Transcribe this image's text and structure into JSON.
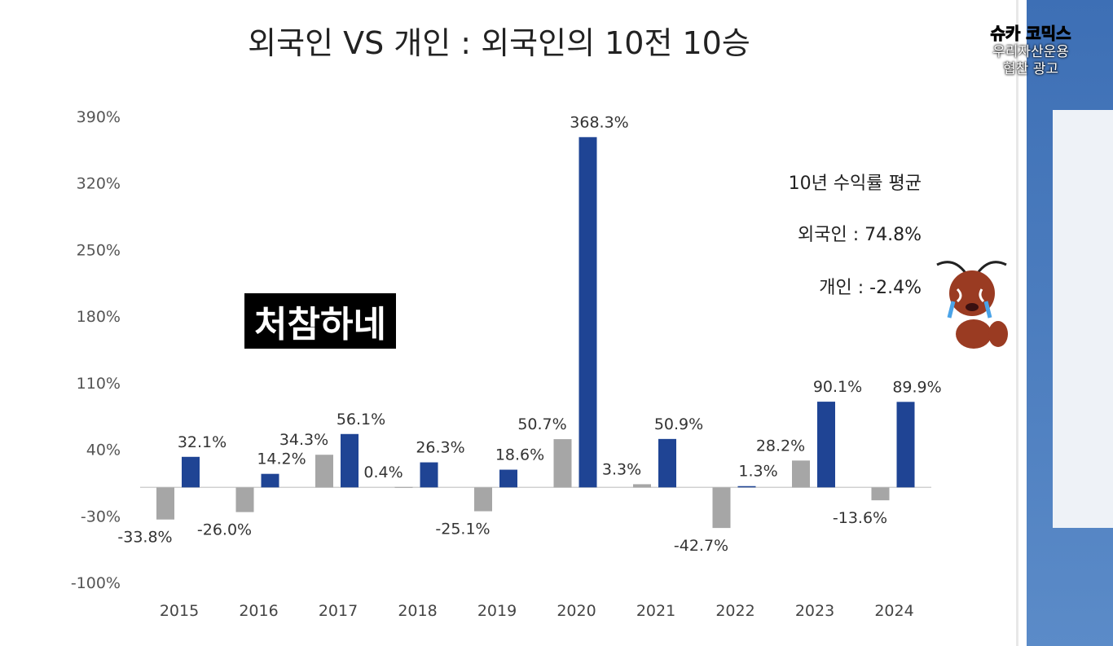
{
  "chart_data": {
    "type": "bar",
    "title": "외국인 VS 개인 : 외국인의 10전 10승",
    "categories": [
      "2015",
      "2016",
      "2017",
      "2018",
      "2019",
      "2020",
      "2021",
      "2022",
      "2023",
      "2024"
    ],
    "series": [
      {
        "color": "#a6a6a6",
        "values": [
          -33.8,
          -26.0,
          34.3,
          0.4,
          -25.1,
          50.7,
          3.3,
          -42.7,
          28.2,
          -13.6
        ]
      },
      {
        "color": "#1f4494",
        "values": [
          32.1,
          14.2,
          56.1,
          26.3,
          18.6,
          368.3,
          50.9,
          1.3,
          90.1,
          89.9
        ]
      }
    ],
    "ylim": [
      -100,
      390
    ],
    "yticks": [
      -100,
      -30,
      40,
      110,
      180,
      250,
      320,
      390
    ],
    "ytick_labels": [
      "-100%",
      "-30%",
      "40%",
      "110%",
      "180%",
      "250%",
      "320%",
      "390%"
    ],
    "grid": false,
    "annotations": {
      "heading": "10년 수익률 평균",
      "foreign": "외국인 : 74.8%",
      "individual": "개인 : -2.4%"
    }
  },
  "overlay": {
    "logo_text": "슈카",
    "logo_text2": "코믹스",
    "sponsor_line1": "우리자산운용",
    "sponsor_line2": "협찬 광고",
    "subtitle": "처참하네"
  }
}
